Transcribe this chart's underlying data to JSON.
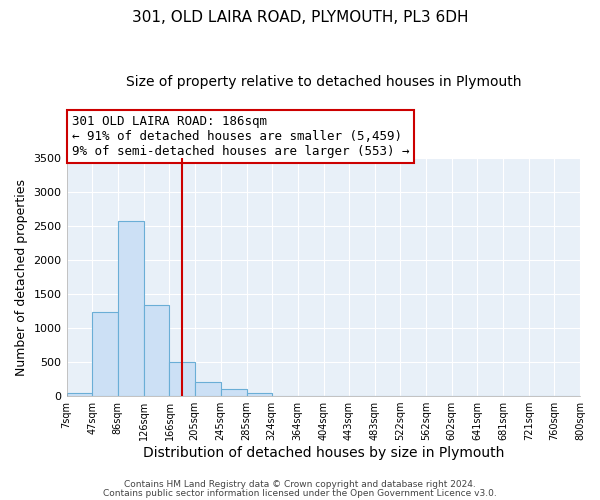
{
  "title": "301, OLD LAIRA ROAD, PLYMOUTH, PL3 6DH",
  "subtitle": "Size of property relative to detached houses in Plymouth",
  "xlabel": "Distribution of detached houses by size in Plymouth",
  "ylabel": "Number of detached properties",
  "bar_edges": [
    7,
    47,
    86,
    126,
    166,
    205,
    245,
    285,
    324,
    364,
    404,
    443,
    483,
    522,
    562,
    602,
    641,
    681,
    721,
    760,
    800
  ],
  "bar_heights": [
    50,
    1240,
    2580,
    1340,
    500,
    200,
    110,
    40,
    5,
    2,
    1,
    1,
    0,
    0,
    0,
    0,
    0,
    0,
    0,
    0
  ],
  "bar_color": "#cce0f5",
  "bar_edge_color": "#6aaed6",
  "vline_x": 186,
  "vline_color": "#cc0000",
  "ylim": [
    0,
    3500
  ],
  "xlim": [
    7,
    800
  ],
  "annotation_title": "301 OLD LAIRA ROAD: 186sqm",
  "annotation_line1": "← 91% of detached houses are smaller (5,459)",
  "annotation_line2": "9% of semi-detached houses are larger (553) →",
  "annotation_box_color": "#cc0000",
  "tick_labels": [
    "7sqm",
    "47sqm",
    "86sqm",
    "126sqm",
    "166sqm",
    "205sqm",
    "245sqm",
    "285sqm",
    "324sqm",
    "364sqm",
    "404sqm",
    "443sqm",
    "483sqm",
    "522sqm",
    "562sqm",
    "602sqm",
    "641sqm",
    "681sqm",
    "721sqm",
    "760sqm",
    "800sqm"
  ],
  "background_color": "#e8f0f8",
  "footer1": "Contains HM Land Registry data © Crown copyright and database right 2024.",
  "footer2": "Contains public sector information licensed under the Open Government Licence v3.0."
}
